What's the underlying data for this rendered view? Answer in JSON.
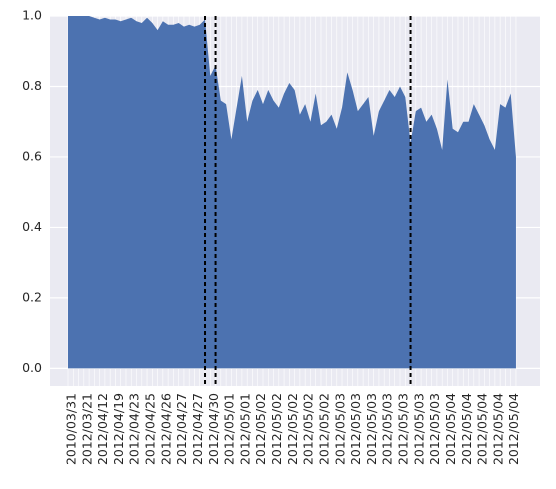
{
  "chart_data": {
    "type": "area",
    "color": "#4c72b0",
    "grid": true,
    "categories": [
      "2010/03/31",
      null,
      null,
      "2012/03/21",
      null,
      null,
      "2012/04/12",
      null,
      null,
      "2012/04/19",
      null,
      null,
      "2012/04/23",
      null,
      null,
      "2012/04/25",
      null,
      null,
      "2012/04/26",
      null,
      null,
      "2012/04/27",
      null,
      null,
      "2012/04/27",
      null,
      null,
      "2012/04/30",
      null,
      null,
      "2012/05/01",
      null,
      null,
      "2012/05/01",
      null,
      null,
      "2012/05/02",
      null,
      null,
      "2012/05/02",
      null,
      null,
      "2012/05/02",
      null,
      null,
      "2012/05/02",
      null,
      null,
      "2012/05/02",
      null,
      null,
      "2012/05/03",
      null,
      null,
      "2012/05/03",
      null,
      null,
      "2012/05/03",
      null,
      null,
      "2012/05/03",
      null,
      null,
      "2012/05/03",
      null,
      null,
      "2012/05/03",
      null,
      null,
      "2012/05/03",
      null,
      null,
      "2012/05/04",
      null,
      null,
      "2012/05/04",
      null,
      null,
      "2012/05/04",
      null,
      null,
      "2012/05/04",
      null,
      null,
      "2012/05/04",
      null
    ],
    "values": [
      1,
      1,
      1,
      1,
      1,
      0.995,
      0.99,
      0.995,
      0.99,
      0.99,
      0.985,
      0.99,
      0.995,
      0.985,
      0.98,
      0.995,
      0.98,
      0.96,
      0.985,
      0.975,
      0.975,
      0.98,
      0.97,
      0.975,
      0.97,
      0.975,
      0.99,
      0.83,
      0.86,
      0.76,
      0.75,
      0.65,
      0.74,
      0.83,
      0.7,
      0.76,
      0.79,
      0.75,
      0.79,
      0.76,
      0.74,
      0.78,
      0.81,
      0.79,
      0.72,
      0.75,
      0.7,
      0.78,
      0.69,
      0.7,
      0.72,
      0.68,
      0.74,
      0.84,
      0.79,
      0.73,
      0.75,
      0.77,
      0.66,
      0.73,
      0.76,
      0.79,
      0.77,
      0.8,
      0.77,
      0.64,
      0.73,
      0.74,
      0.7,
      0.72,
      0.68,
      0.62,
      0.82,
      0.68,
      0.67,
      0.7,
      0.7,
      0.75,
      0.72,
      0.69,
      0.65,
      0.62,
      0.75,
      0.74,
      0.78,
      0.6
    ],
    "vlines": [
      26,
      28,
      65
    ],
    "ylim": [
      -0.05,
      1.0
    ],
    "yticks": [
      {
        "value": 0,
        "label": "0.0"
      },
      {
        "value": 0.2,
        "label": "0.2"
      },
      {
        "value": 0.4,
        "label": "0.4"
      },
      {
        "value": 0.6,
        "label": "0.6"
      },
      {
        "value": 0.8,
        "label": "0.8"
      },
      {
        "value": 1,
        "label": "1.0"
      }
    ]
  }
}
